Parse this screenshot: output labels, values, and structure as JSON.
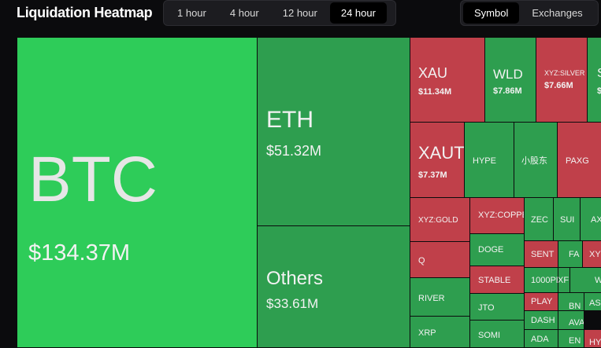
{
  "header": {
    "title": "Liquidation Heatmap",
    "timeframes": [
      "1 hour",
      "4 hour",
      "12 hour",
      "24 hour"
    ],
    "active_timeframe": "24 hour",
    "modes": [
      "Symbol",
      "Exchanges"
    ],
    "active_mode": "Symbol"
  },
  "colors": {
    "bright_green": "#2ecc59",
    "green": "#2e9e4f",
    "red": "#c0404a",
    "background": "#0b0b0d"
  },
  "tiles": [
    {
      "symbol": "BTC",
      "amount": "$134.37M"
    },
    {
      "symbol": "ETH",
      "amount": "$51.32M"
    },
    {
      "symbol": "Others",
      "amount": "$33.61M"
    },
    {
      "symbol": "XAU",
      "amount": "$11.34M"
    },
    {
      "symbol": "WLD",
      "amount": "$7.86M"
    },
    {
      "symbol": "XYZ:SILVER",
      "amount": "$7.66M"
    },
    {
      "symbol": "S",
      "amount": "$"
    },
    {
      "symbol": "XAUT",
      "amount": "$7.37M"
    },
    {
      "symbol": "HYPE",
      "amount": ""
    },
    {
      "symbol": "小股东",
      "amount": ""
    },
    {
      "symbol": "PAXG",
      "amount": ""
    },
    {
      "symbol": "XYZ:GOLD",
      "amount": ""
    },
    {
      "symbol": "XYZ:COPPE",
      "amount": ""
    },
    {
      "symbol": "ZEC",
      "amount": ""
    },
    {
      "symbol": "SUI",
      "amount": ""
    },
    {
      "symbol": "AX",
      "amount": ""
    },
    {
      "symbol": "Q",
      "amount": ""
    },
    {
      "symbol": "DOGE",
      "amount": ""
    },
    {
      "symbol": "SENT",
      "amount": ""
    },
    {
      "symbol": "FA",
      "amount": ""
    },
    {
      "symbol": "XY",
      "amount": ""
    },
    {
      "symbol": "STABLE",
      "amount": ""
    },
    {
      "symbol": "1000PE",
      "amount": ""
    },
    {
      "symbol": "XF",
      "amount": ""
    },
    {
      "symbol": "W",
      "amount": ""
    },
    {
      "symbol": "RIVER",
      "amount": ""
    },
    {
      "symbol": "JTO",
      "amount": ""
    },
    {
      "symbol": "PLAY",
      "amount": ""
    },
    {
      "symbol": "BN",
      "amount": ""
    },
    {
      "symbol": "AS",
      "amount": ""
    },
    {
      "symbol": "XRP",
      "amount": ""
    },
    {
      "symbol": "SOMI",
      "amount": ""
    },
    {
      "symbol": "DASH",
      "amount": ""
    },
    {
      "symbol": "AVA",
      "amount": ""
    },
    {
      "symbol": "ADA",
      "amount": ""
    },
    {
      "symbol": "EN",
      "amount": ""
    },
    {
      "symbol": "HY",
      "amount": ""
    }
  ]
}
